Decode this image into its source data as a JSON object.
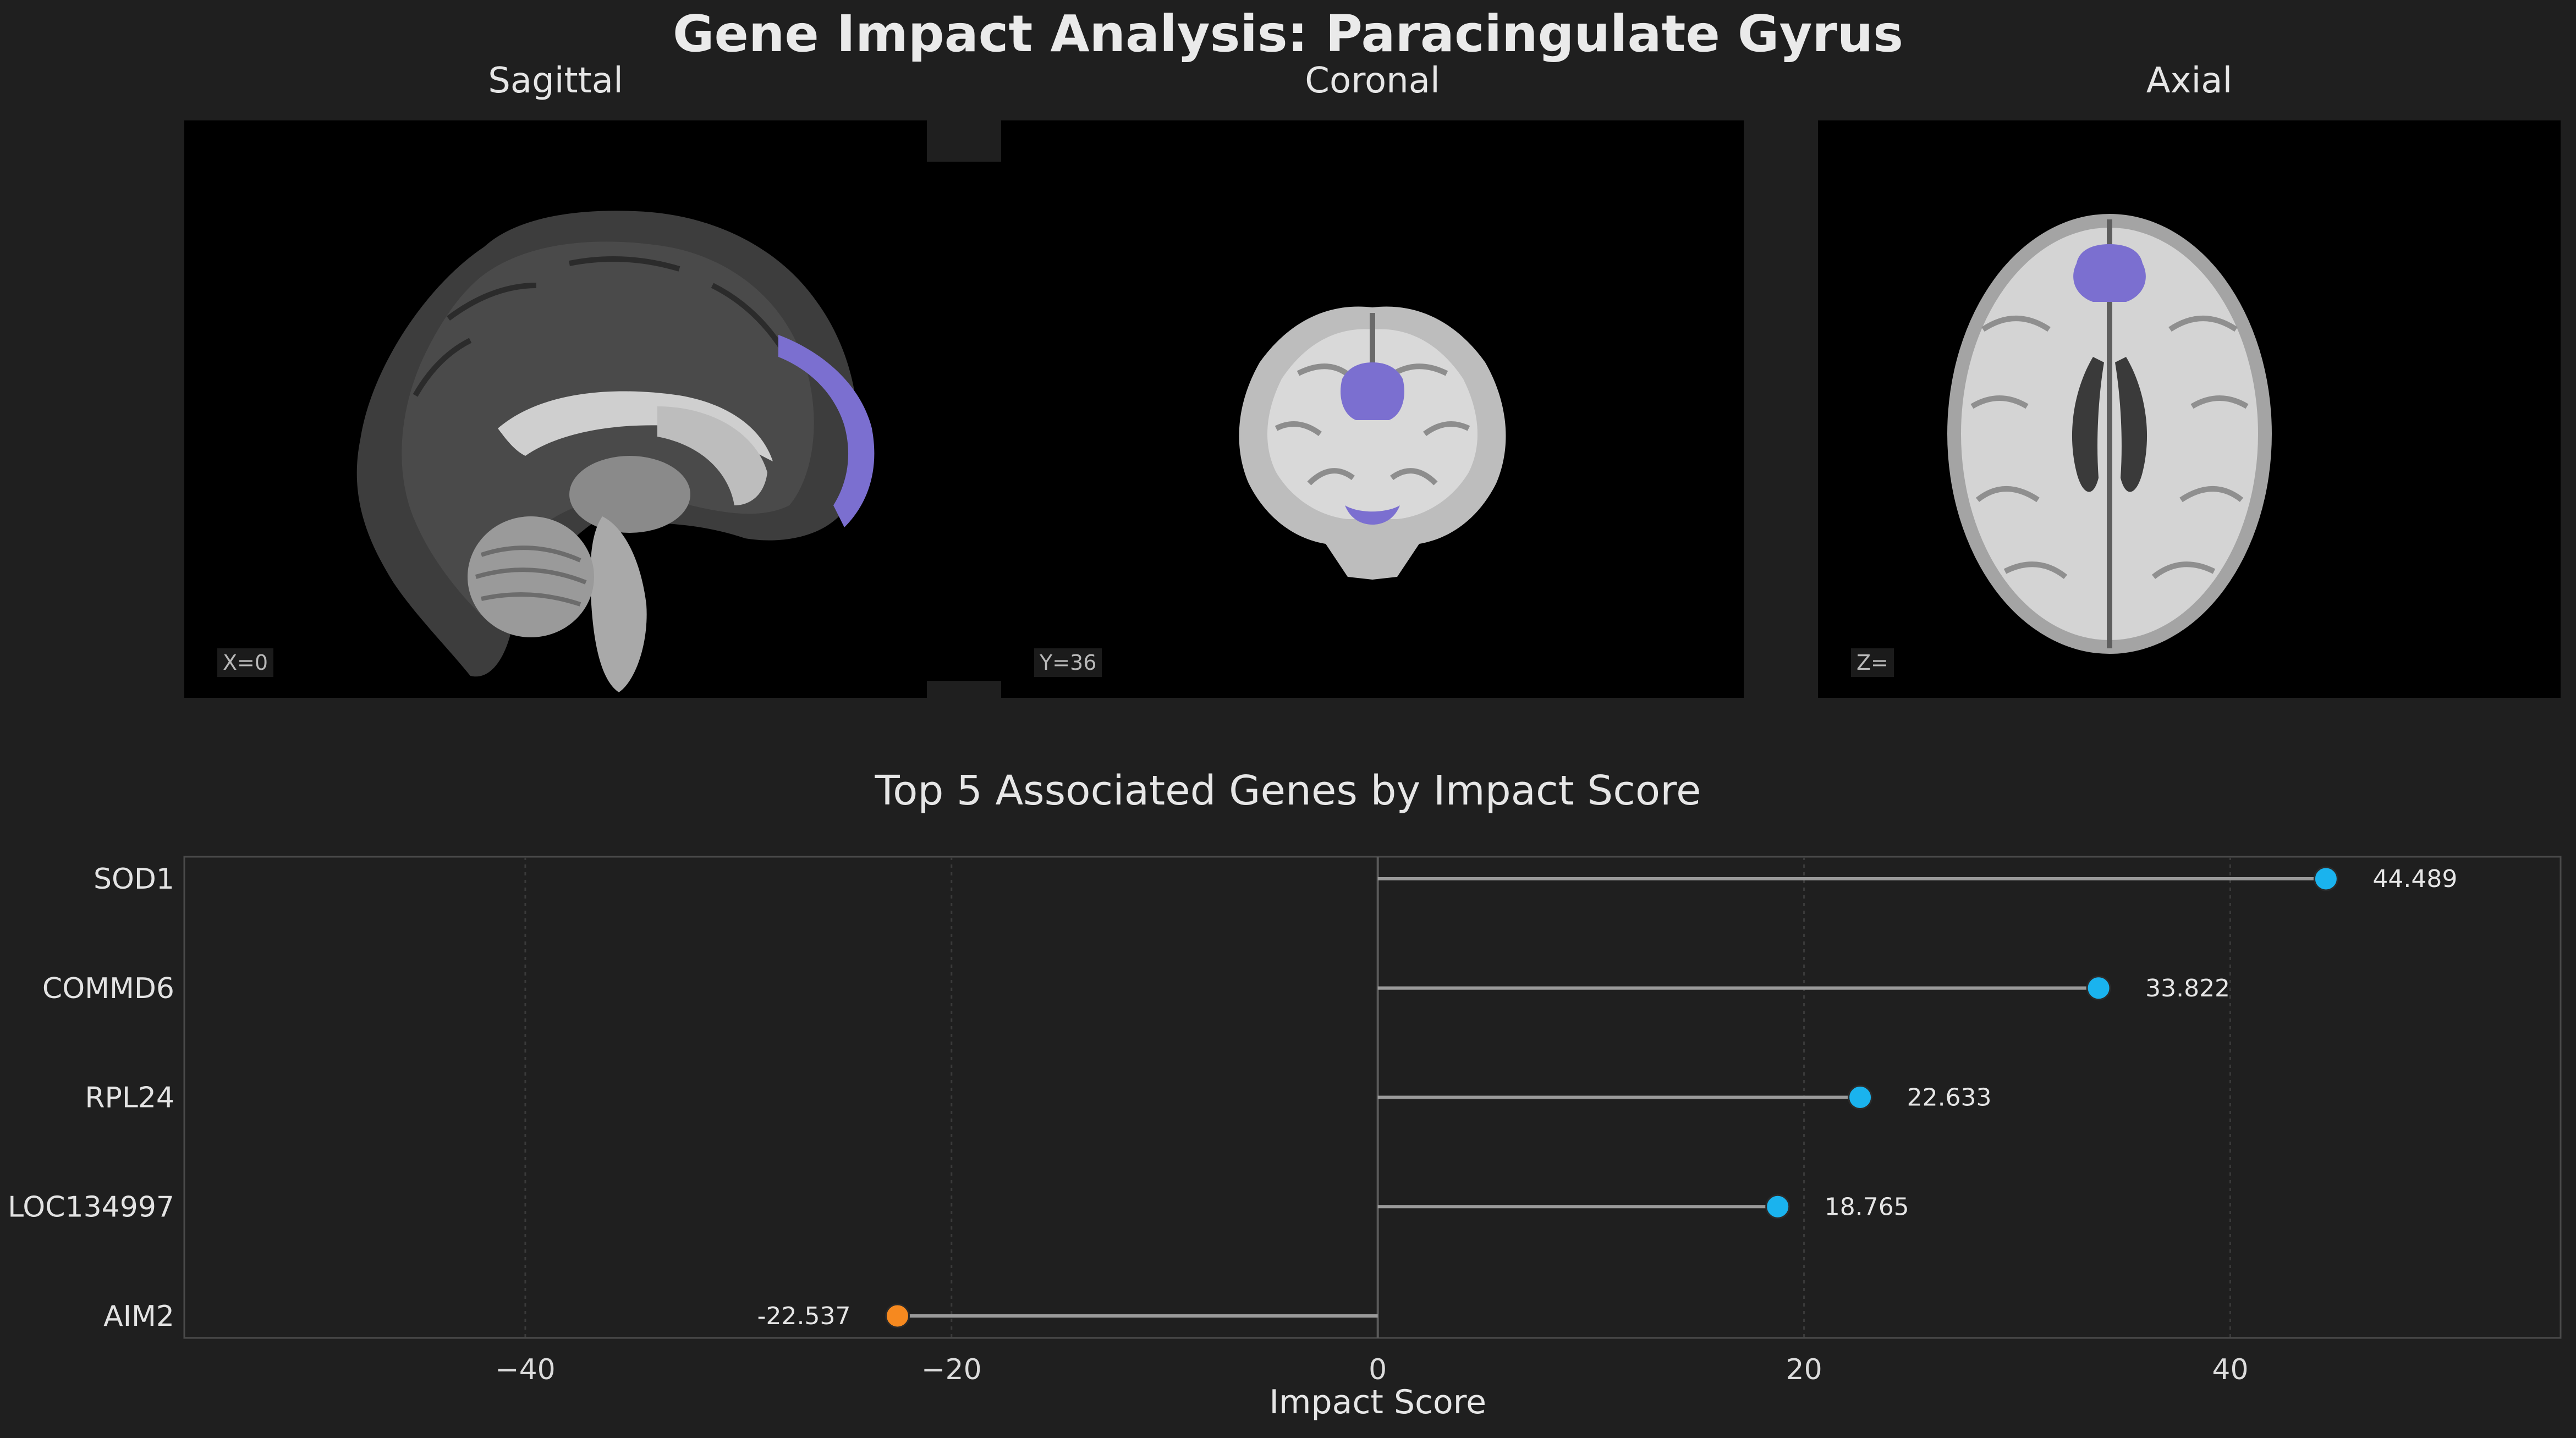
{
  "title": "Gene Impact Analysis: Paracingulate Gyrus",
  "views": [
    {
      "title": "Sagittal",
      "coord": "X=0"
    },
    {
      "title": "Coronal",
      "coord": "Y=36"
    },
    {
      "title": "Axial",
      "coord": "Z="
    }
  ],
  "colors": {
    "background": "#1f1f1f",
    "highlight_region": "#7b6fd0",
    "positive": "#1ab3ee",
    "negative": "#f6891f",
    "stem": "#9a9a9a"
  },
  "chart_data": {
    "type": "lollipop",
    "title": "Top 5 Associated Genes by Impact Score",
    "xlabel": "Impact Score",
    "ylabel": "",
    "xlim": [
      -56,
      55.5
    ],
    "xticks": [
      -40,
      -20,
      0,
      20,
      40
    ],
    "xtick_labels": [
      "−40",
      "−20",
      "0",
      "20",
      "40"
    ],
    "grid": true,
    "categories": [
      "SOD1",
      "COMMD6",
      "RPL24",
      "LOC134997",
      "AIM2"
    ],
    "values": [
      44.489,
      33.822,
      22.633,
      18.765,
      -22.537
    ],
    "value_labels": [
      "44.489",
      "33.822",
      "22.633",
      "18.765",
      "-22.537"
    ]
  }
}
